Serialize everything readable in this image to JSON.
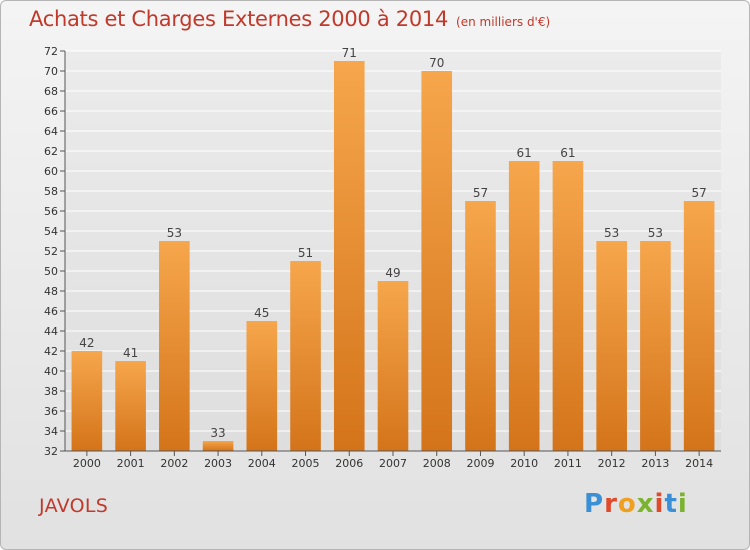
{
  "title": "Achats et Charges Externes 2000 à 2014",
  "subtitle": "(en milliers d'€)",
  "location": "JAVOLS",
  "logo": {
    "letters": [
      "P",
      "r",
      "o",
      "x",
      "i",
      "t",
      "i"
    ],
    "colors": [
      "#3a8fd6",
      "#e04a2a",
      "#f0a020",
      "#7ab32e",
      "#e04a2a",
      "#3a8fd6",
      "#7ab32e"
    ]
  },
  "chart_data": {
    "type": "bar",
    "categories": [
      "2000",
      "2001",
      "2002",
      "2003",
      "2004",
      "2005",
      "2006",
      "2007",
      "2008",
      "2009",
      "2010",
      "2011",
      "2012",
      "2013",
      "2014"
    ],
    "values": [
      42,
      41,
      53,
      33,
      45,
      51,
      71,
      49,
      70,
      57,
      61,
      61,
      53,
      53,
      57
    ],
    "ylim": [
      32,
      72
    ],
    "yticks": [
      32,
      34,
      36,
      38,
      40,
      42,
      44,
      46,
      48,
      50,
      52,
      54,
      56,
      58,
      60,
      62,
      64,
      66,
      68,
      70,
      72
    ],
    "grid": true,
    "bar_color_light": "#f6a64c",
    "bar_color_dark": "#d4741a"
  }
}
